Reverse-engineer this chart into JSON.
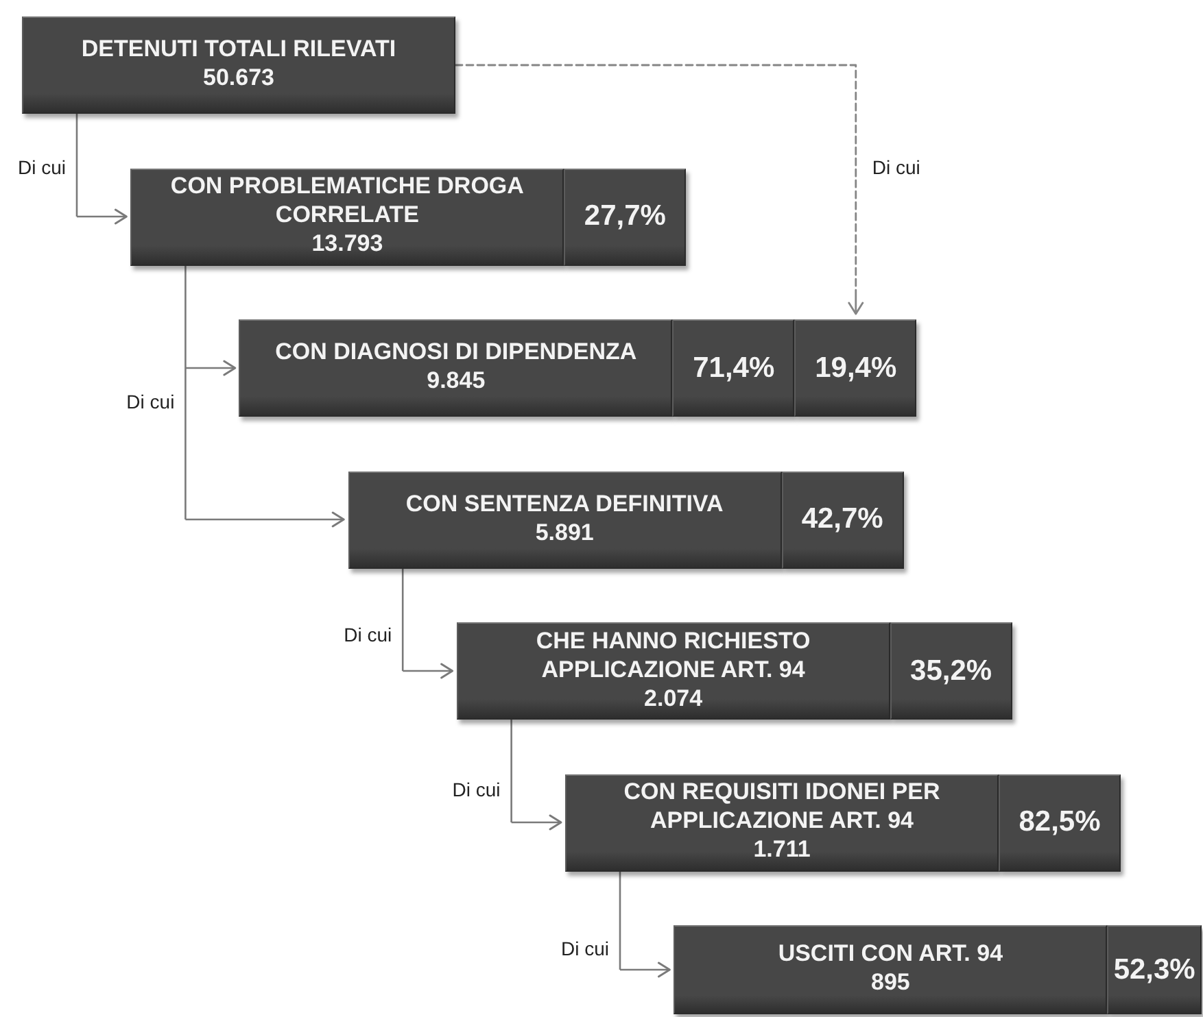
{
  "chart_data": {
    "type": "other",
    "categories": [
      "DETENUTI TOTALI RILEVATI",
      "CON PROBLEMATICHE DROGA CORRELATE",
      "CON DIAGNOSI DI DIPENDENZA",
      "CON SENTENZA DEFINITIVA",
      "CHE HANNO RICHIESTO APPLICAZIONE ART. 94",
      "CON REQUISITI IDONEI PER APPLICAZIONE ART. 94",
      "USCITI CON ART. 94"
    ],
    "series": [
      {
        "color": "#474747",
        "values": [
          50673,
          13793,
          9845,
          5891,
          2074,
          1711,
          895
        ],
        "value_labels": [
          "50.673",
          "13.793",
          "9.845",
          "5.891",
          "2.074",
          "1.711",
          "895"
        ]
      },
      {
        "color": "#474747",
        "values": [
          null,
          27.7,
          71.4,
          42.7,
          35.2,
          82.5,
          52.3
        ],
        "value_labels": [
          null,
          "27,7%",
          "71,4%",
          "42,7%",
          "35,2%",
          "82,5%",
          "52,3%"
        ]
      },
      {
        "color": "#474747",
        "values": [
          null,
          null,
          19.4,
          null,
          null,
          null,
          null
        ],
        "value_labels": [
          null,
          null,
          "19,4%",
          null,
          null,
          null,
          null
        ]
      }
    ],
    "annotations": [
      "Di cui",
      "Di cui",
      "Di cui",
      "Di cui",
      "Di cui",
      "Di cui"
    ]
  }
}
